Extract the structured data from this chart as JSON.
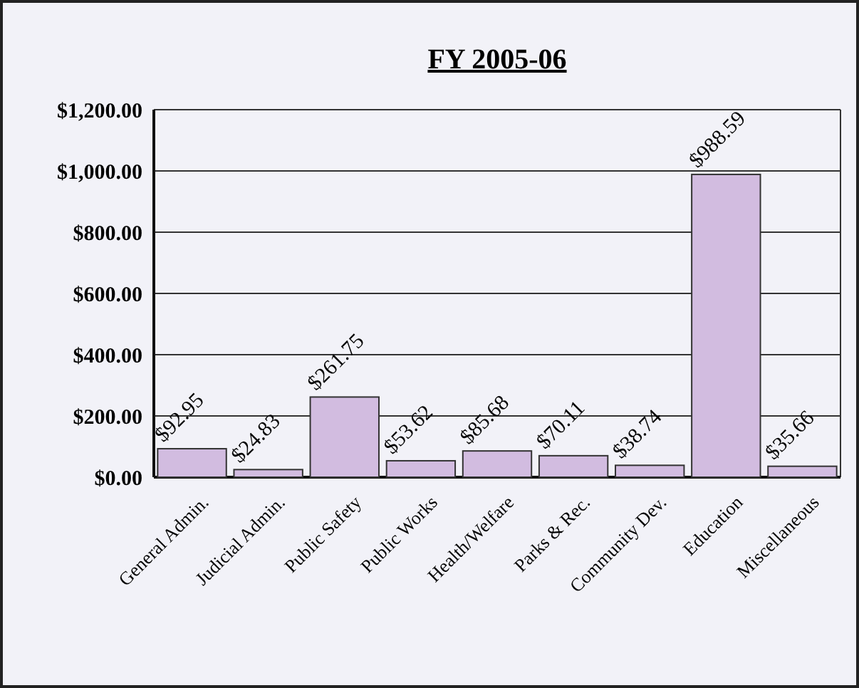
{
  "chart_data": {
    "type": "bar",
    "title": "FY 2005-06",
    "categories": [
      "General Admin.",
      "Judicial Admin.",
      "Public Safety",
      "Public Works",
      "Health/Welfare",
      "Parks & Rec.",
      "Community Dev.",
      "Education",
      "Miscellaneous"
    ],
    "values": [
      92.95,
      24.83,
      261.75,
      53.62,
      85.68,
      70.11,
      38.74,
      988.59,
      35.66
    ],
    "value_labels": [
      "$92.95",
      "$24.83",
      "$261.75",
      "$53.62",
      "$85.68",
      "$70.11",
      "$38.74",
      "$988.59",
      "$35.66"
    ],
    "color": "#d2bce0",
    "ylim": [
      0,
      1200
    ],
    "yticks": [
      {
        "value": 0,
        "label": "$0.00"
      },
      {
        "value": 200,
        "label": "$200.00"
      },
      {
        "value": 400,
        "label": "$400.00"
      },
      {
        "value": 600,
        "label": "$600.00"
      },
      {
        "value": 800,
        "label": "$800.00"
      },
      {
        "value": 1000,
        "label": "$1,000.00"
      },
      {
        "value": 1200,
        "label": "$1,200.00"
      }
    ],
    "grid": "y"
  }
}
